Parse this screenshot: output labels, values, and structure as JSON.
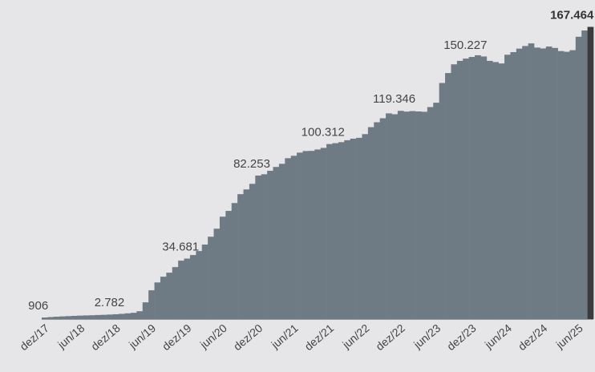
{
  "chart_data": {
    "type": "bar",
    "categories": [
      "dez/17",
      null,
      null,
      null,
      null,
      null,
      "jun/18",
      null,
      null,
      null,
      null,
      null,
      "dez/18",
      null,
      null,
      null,
      null,
      null,
      "jun/19",
      null,
      null,
      null,
      null,
      null,
      "dez/19",
      null,
      null,
      null,
      null,
      null,
      "jun/20",
      null,
      null,
      null,
      null,
      null,
      "dez/20",
      null,
      null,
      null,
      null,
      null,
      "jun/21",
      null,
      null,
      null,
      null,
      null,
      "dez/21",
      null,
      null,
      null,
      null,
      null,
      "jun/22",
      null,
      null,
      null,
      null,
      null,
      "dez/22",
      null,
      null,
      null,
      null,
      null,
      "jun/23",
      null,
      null,
      null,
      null,
      null,
      "dez/23",
      null,
      null,
      null,
      null,
      null,
      "jun/24",
      null,
      null,
      null,
      null,
      null,
      "dez/24",
      null,
      null,
      null,
      null,
      null,
      "jun/25",
      null,
      null
    ],
    "values": [
      906,
      1150,
      1350,
      1550,
      1700,
      1850,
      2000,
      2100,
      2200,
      2350,
      2450,
      2600,
      2782,
      3000,
      3300,
      3600,
      4500,
      9600,
      16500,
      21000,
      24300,
      26600,
      29800,
      33500,
      34681,
      36700,
      39000,
      42700,
      47200,
      51800,
      58700,
      62000,
      66500,
      71600,
      74300,
      77500,
      82253,
      83000,
      85000,
      87200,
      89000,
      92200,
      93600,
      95400,
      96300,
      96400,
      97200,
      98100,
      100312,
      100800,
      101400,
      102500,
      103400,
      103900,
      106000,
      110000,
      112800,
      115100,
      117900,
      117400,
      119346,
      118900,
      119200,
      119000,
      118800,
      121500,
      124000,
      135300,
      141000,
      146000,
      148000,
      149300,
      150227,
      151200,
      150500,
      148000,
      147300,
      146500,
      151500,
      153000,
      155000,
      156500,
      158000,
      155600,
      155100,
      156200,
      155400,
      153600,
      153200,
      154100,
      161800,
      165400,
      167464
    ],
    "value_labels": [
      "906",
      null,
      null,
      null,
      null,
      null,
      null,
      null,
      null,
      null,
      null,
      null,
      "2.782",
      null,
      null,
      null,
      null,
      null,
      null,
      null,
      null,
      null,
      null,
      null,
      "34.681",
      null,
      null,
      null,
      null,
      null,
      null,
      null,
      null,
      null,
      null,
      null,
      "82.253",
      null,
      null,
      null,
      null,
      null,
      null,
      null,
      null,
      null,
      null,
      null,
      "100.312",
      null,
      null,
      null,
      null,
      null,
      null,
      null,
      null,
      null,
      null,
      null,
      "119.346",
      null,
      null,
      null,
      null,
      null,
      null,
      null,
      null,
      null,
      null,
      null,
      "150.227",
      null,
      null,
      null,
      null,
      null,
      null,
      null,
      null,
      null,
      null,
      null,
      null,
      null,
      null,
      null,
      null,
      null,
      null,
      null,
      "167.464"
    ],
    "color": "#6e7a84",
    "last_color": "#3b3b3b",
    "ylim": [
      0,
      170000
    ]
  }
}
